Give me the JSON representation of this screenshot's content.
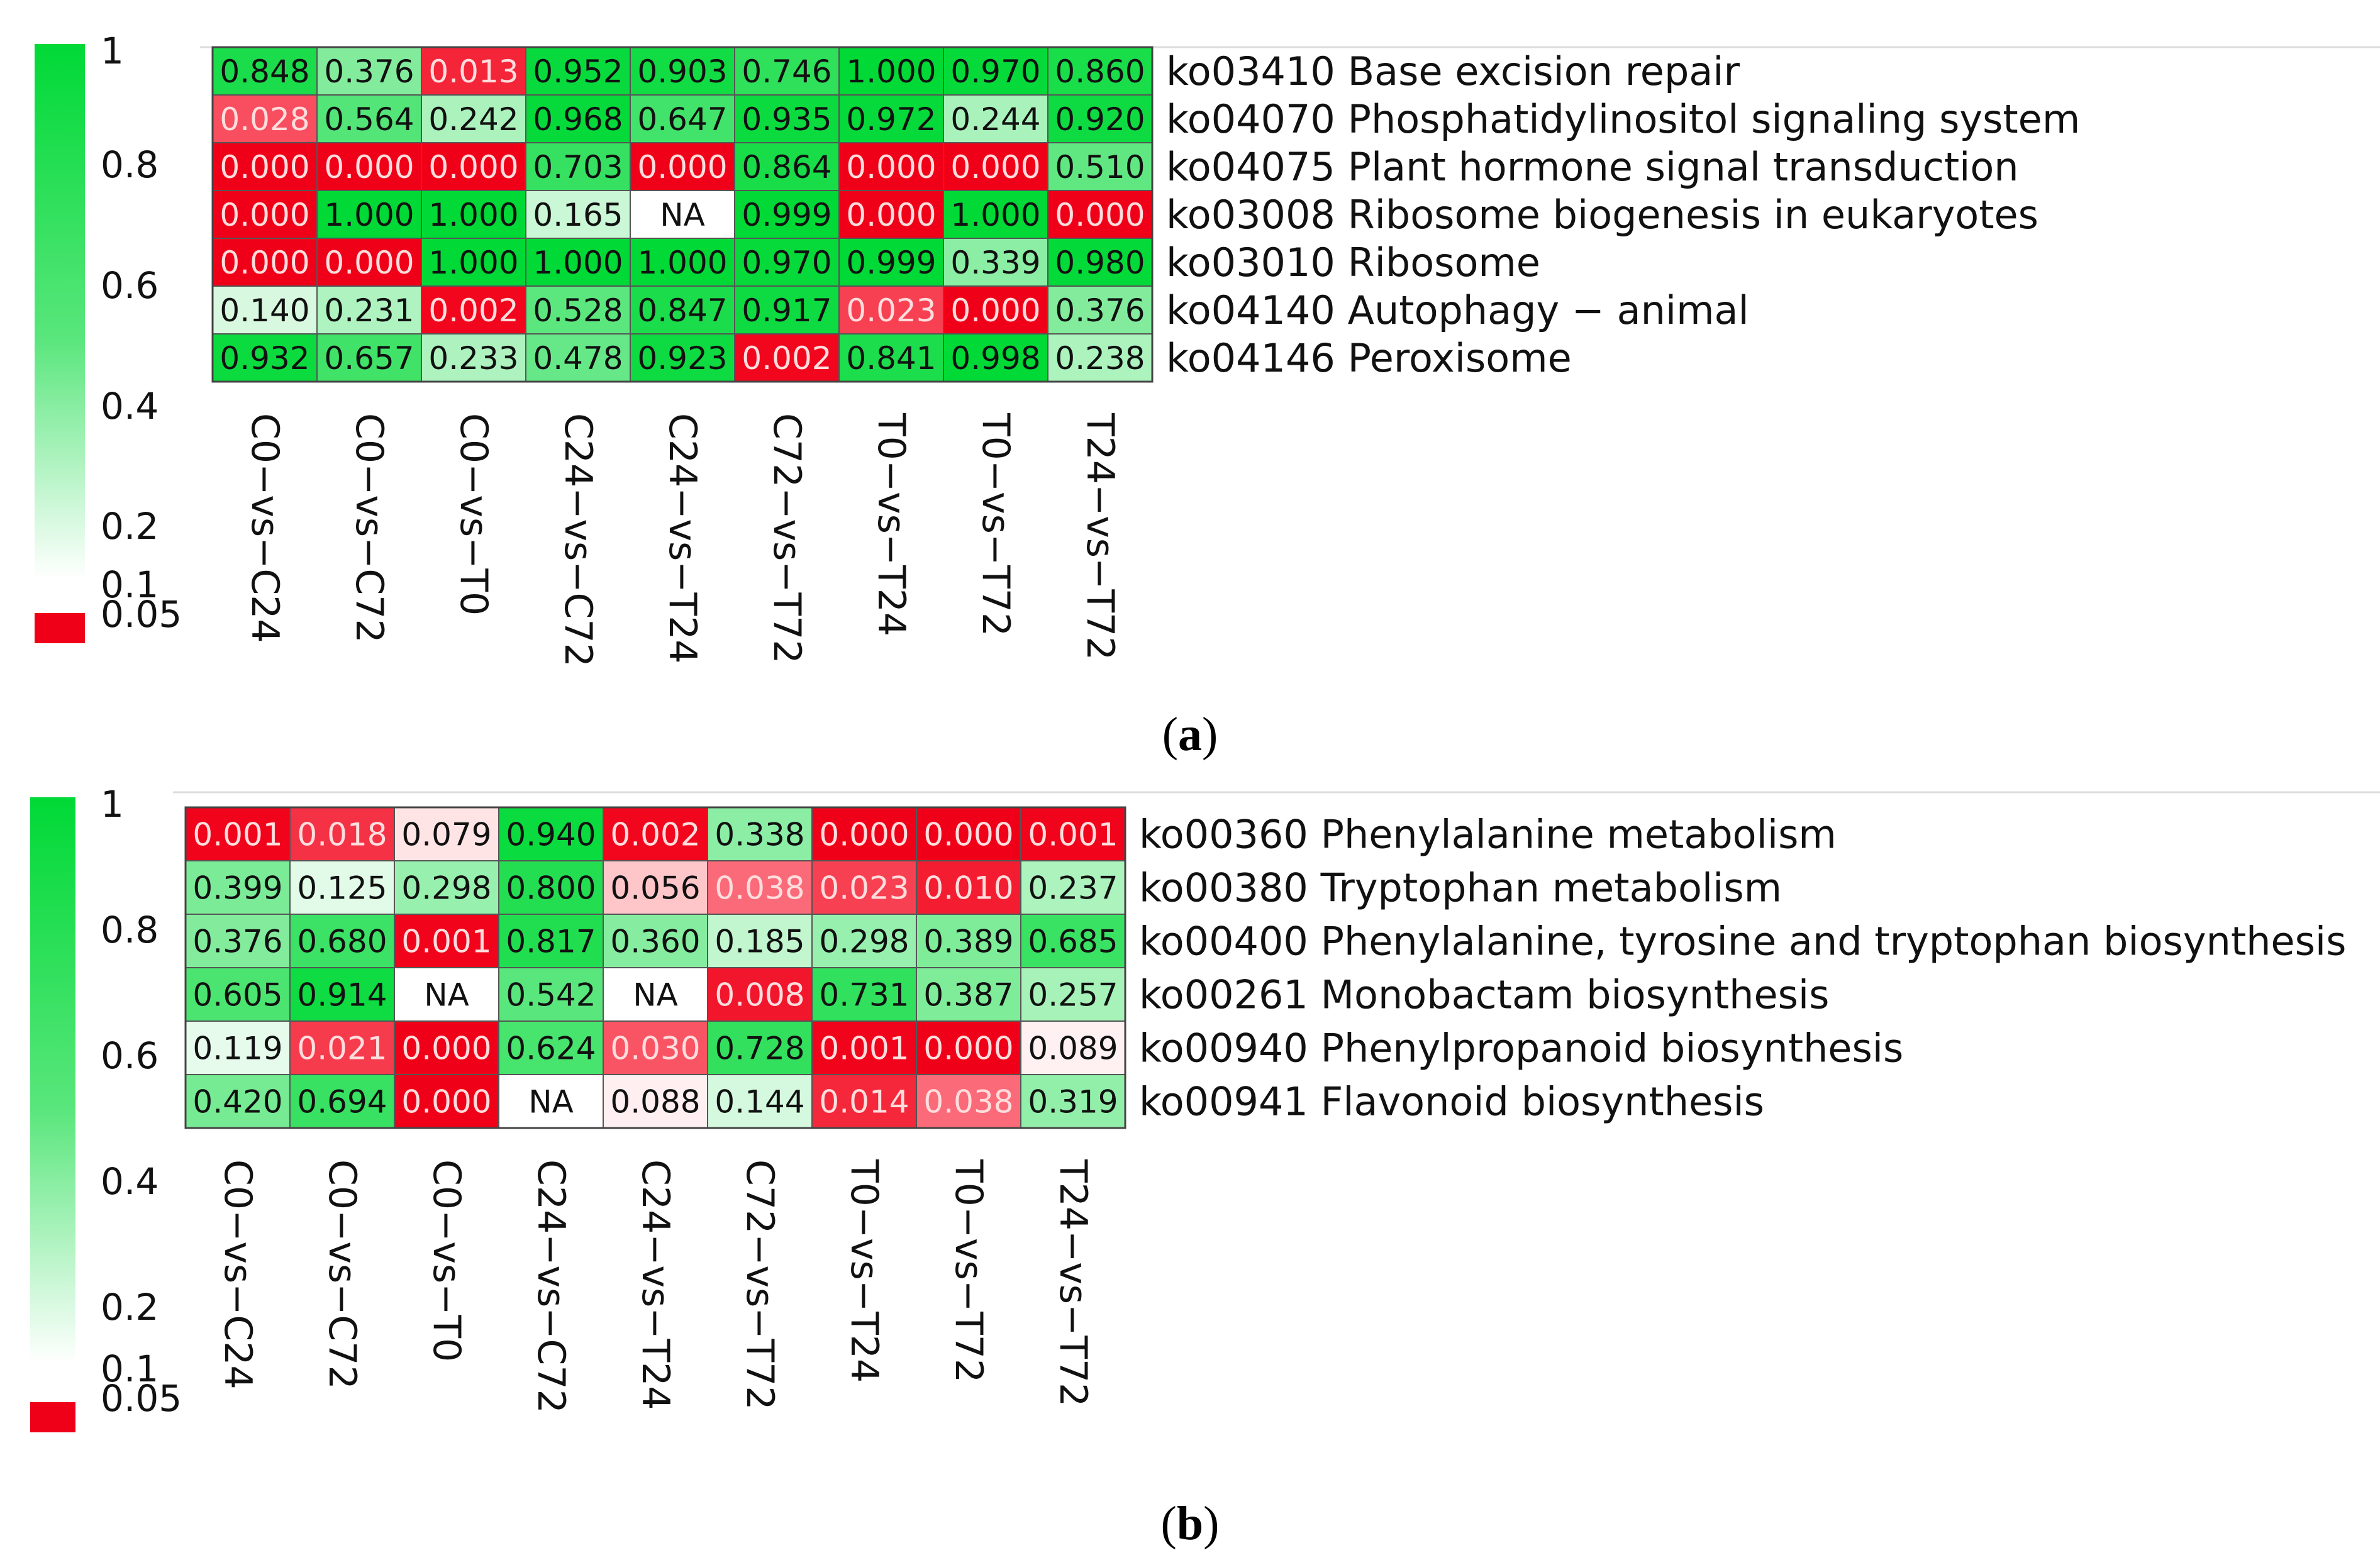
{
  "chart_data": [
    {
      "type": "heatmap",
      "panel": "(a)",
      "panel_letter": "a",
      "colorbar_ticks": [
        "1",
        "0.8",
        "0.6",
        "0.4",
        "0.2",
        "0.1",
        "0.05"
      ],
      "columns": [
        "C0−vs−C24",
        "C0−vs−C72",
        "C0−vs−T0",
        "C24−vs−C72",
        "C24−vs−T24",
        "C72−vs−T72",
        "T0−vs−T24",
        "T0−vs−T72",
        "T24−vs−T72"
      ],
      "rows": [
        {
          "label": "ko03410 Base excision repair",
          "values": [
            "0.848",
            "0.376",
            "0.013",
            "0.952",
            "0.903",
            "0.746",
            "1.000",
            "0.970",
            "0.860"
          ]
        },
        {
          "label": "ko04070 Phosphatidylinositol signaling system",
          "values": [
            "0.028",
            "0.564",
            "0.242",
            "0.968",
            "0.647",
            "0.935",
            "0.972",
            "0.244",
            "0.920"
          ]
        },
        {
          "label": "ko04075 Plant hormone signal transduction",
          "values": [
            "0.000",
            "0.000",
            "0.000",
            "0.703",
            "0.000",
            "0.864",
            "0.000",
            "0.000",
            "0.510"
          ]
        },
        {
          "label": "ko03008 Ribosome biogenesis in eukaryotes",
          "values": [
            "0.000",
            "1.000",
            "1.000",
            "0.165",
            "NA",
            "0.999",
            "0.000",
            "1.000",
            "0.000"
          ]
        },
        {
          "label": "ko03010 Ribosome",
          "values": [
            "0.000",
            "0.000",
            "1.000",
            "1.000",
            "1.000",
            "0.970",
            "0.999",
            "0.339",
            "0.980"
          ]
        },
        {
          "label": "ko04140 Autophagy − animal",
          "values": [
            "0.140",
            "0.231",
            "0.002",
            "0.528",
            "0.847",
            "0.917",
            "0.023",
            "0.000",
            "0.376"
          ]
        },
        {
          "label": "ko04146 Peroxisome",
          "values": [
            "0.932",
            "0.657",
            "0.233",
            "0.478",
            "0.923",
            "0.002",
            "0.841",
            "0.998",
            "0.238"
          ]
        }
      ]
    },
    {
      "type": "heatmap",
      "panel": "(b)",
      "panel_letter": "b",
      "colorbar_ticks": [
        "1",
        "0.8",
        "0.6",
        "0.4",
        "0.2",
        "0.1",
        "0.05"
      ],
      "columns": [
        "C0−vs−C24",
        "C0−vs−C72",
        "C0−vs−T0",
        "C24−vs−C72",
        "C24−vs−T24",
        "C72−vs−T72",
        "T0−vs−T24",
        "T0−vs−T72",
        "T24−vs−T72"
      ],
      "rows": [
        {
          "label": "ko00360 Phenylalanine metabolism",
          "values": [
            "0.001",
            "0.018",
            "0.079",
            "0.940",
            "0.002",
            "0.338",
            "0.000",
            "0.000",
            "0.001"
          ]
        },
        {
          "label": "ko00380 Tryptophan metabolism",
          "values": [
            "0.399",
            "0.125",
            "0.298",
            "0.800",
            "0.056",
            "0.038",
            "0.023",
            "0.010",
            "0.237"
          ]
        },
        {
          "label": "ko00400 Phenylalanine, tyrosine and tryptophan biosynthesis",
          "values": [
            "0.376",
            "0.680",
            "0.001",
            "0.817",
            "0.360",
            "0.185",
            "0.298",
            "0.389",
            "0.685"
          ]
        },
        {
          "label": "ko00261 Monobactam biosynthesis",
          "values": [
            "0.605",
            "0.914",
            "NA",
            "0.542",
            "NA",
            "0.008",
            "0.731",
            "0.387",
            "0.257"
          ]
        },
        {
          "label": "ko00940 Phenylpropanoid biosynthesis",
          "values": [
            "0.119",
            "0.021",
            "0.000",
            "0.624",
            "0.030",
            "0.728",
            "0.001",
            "0.000",
            "0.089"
          ]
        },
        {
          "label": "ko00941 Flavonoid biosynthesis",
          "values": [
            "0.420",
            "0.694",
            "0.000",
            "NA",
            "0.088",
            "0.144",
            "0.014",
            "0.038",
            "0.319"
          ]
        }
      ]
    }
  ],
  "colors": {
    "green": "#00d936",
    "white": "#ffffff",
    "red": "#f00018",
    "grid": "#555555"
  }
}
